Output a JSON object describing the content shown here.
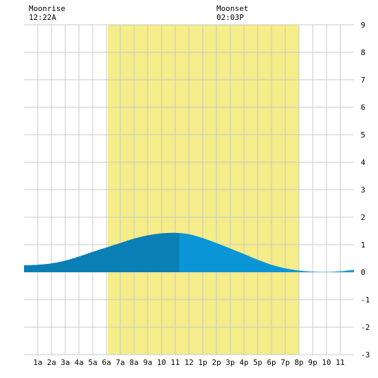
{
  "moonrise": {
    "label": "Moonrise",
    "time": "12:22A"
  },
  "moonset": {
    "label": "Moonset",
    "time": "02:03P"
  },
  "colors": {
    "daylight": "#f5ec8a",
    "tide_past": "#0a7fb5",
    "tide_future": "#0a96d6",
    "grid": "#c8c8c8",
    "background": "#ffffff"
  },
  "chart_data": {
    "type": "area",
    "title": "",
    "xlabel": "",
    "ylabel": "",
    "x_tick_labels": [
      "1a",
      "2a",
      "3a",
      "4a",
      "5a",
      "6a",
      "7a",
      "8a",
      "9a",
      "10",
      "11",
      "12",
      "1p",
      "2p",
      "3p",
      "4p",
      "5p",
      "6p",
      "7p",
      "8p",
      "9p",
      "10",
      "11"
    ],
    "x_tick_hours": [
      1,
      2,
      3,
      4,
      5,
      6,
      7,
      8,
      9,
      10,
      11,
      12,
      13,
      14,
      15,
      16,
      17,
      18,
      19,
      20,
      21,
      22,
      23
    ],
    "xlim_hours": [
      0,
      24
    ],
    "ylim": [
      -3,
      9
    ],
    "y_ticks": [
      -3,
      -2,
      -1,
      0,
      1,
      2,
      3,
      4,
      5,
      6,
      7,
      8,
      9
    ],
    "grid": true,
    "daylight_hours": [
      6.1,
      20.0
    ],
    "now_hour": 11.3,
    "tide": {
      "hours": [
        0,
        1,
        2,
        3,
        4,
        5,
        6,
        7,
        8,
        9,
        10,
        11,
        12,
        13,
        14,
        15,
        16,
        17,
        18,
        19,
        20,
        21,
        22,
        23,
        24
      ],
      "heights": [
        0.25,
        0.27,
        0.32,
        0.42,
        0.57,
        0.74,
        0.9,
        1.06,
        1.22,
        1.34,
        1.41,
        1.43,
        1.38,
        1.24,
        1.06,
        0.86,
        0.66,
        0.45,
        0.27,
        0.14,
        0.06,
        0.02,
        0.01,
        0.03,
        0.08
      ]
    }
  }
}
